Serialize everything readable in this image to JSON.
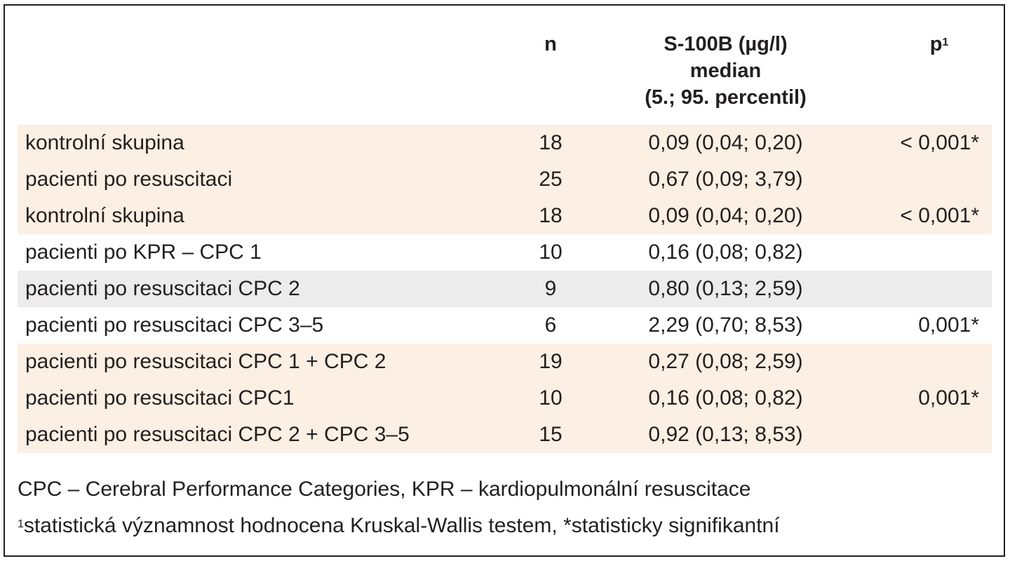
{
  "table": {
    "header": {
      "label": "",
      "n": "n",
      "s100b_line1": "S-100B (µg/l)",
      "s100b_line2": "median",
      "s100b_line3": "(5.; 95. percentil)",
      "p": "p",
      "p_sup": "1"
    },
    "rows": [
      {
        "label": "kontrolní skupina",
        "n": "18",
        "value": "0,09 (0,04; 0,20)",
        "p": "< 0,001*"
      },
      {
        "label": "pacienti po resuscitaci",
        "n": "25",
        "value": "0,67 (0,09; 3,79)",
        "p": ""
      },
      {
        "label": "kontrolní skupina",
        "n": "18",
        "value": "0,09 (0,04; 0,20)",
        "p": "< 0,001*"
      },
      {
        "label": "pacienti po KPR – CPC 1",
        "n": "10",
        "value": "0,16 (0,08; 0,82)",
        "p": ""
      },
      {
        "label": "pacienti po resuscitaci CPC 2",
        "n": "9",
        "value": "0,80 (0,13; 2,59)",
        "p": ""
      },
      {
        "label": "pacienti po resuscitaci CPC 3–5",
        "n": "6",
        "value": "2,29 (0,70; 8,53)",
        "p": "0,001*"
      },
      {
        "label": "pacienti po resuscitaci CPC 1 + CPC 2",
        "n": "19",
        "value": "0,27 (0,08; 2,59)",
        "p": ""
      },
      {
        "label": "pacienti po resuscitaci CPC1",
        "n": "10",
        "value": "0,16 (0,08; 0,82)",
        "p": "0,001*"
      },
      {
        "label": "pacienti po resuscitaci CPC 2 + CPC 3–5",
        "n": "15",
        "value": "0,92 (0,13; 8,53)",
        "p": ""
      }
    ]
  },
  "footnotes": {
    "line1": "CPC – Cerebral Performance Categories, KPR – kardiopulmonální resuscitace",
    "line2_sup": "1",
    "line2": "statistická významnost hodnocena Kruskal-Wallis testem, *statisticky signifikantní"
  },
  "colors": {
    "warm_shade": "#fcefe3",
    "gray_shade": "#ececec",
    "text": "#231f20"
  }
}
